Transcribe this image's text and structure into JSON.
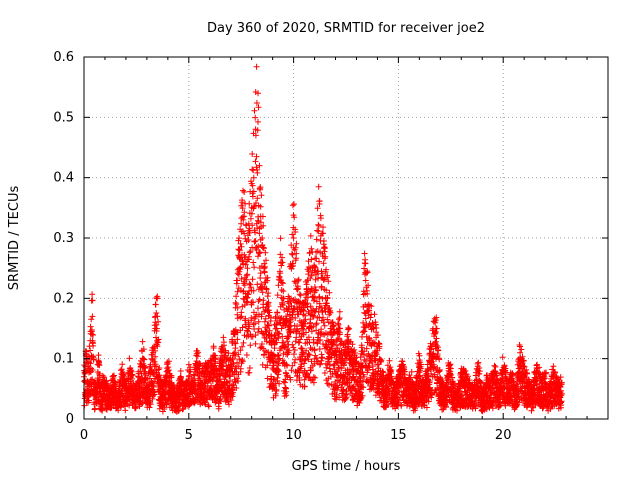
{
  "chart_data": {
    "type": "scatter",
    "title": "Day 360 of 2020, SRMTID for receiver joe2",
    "xlabel": "GPS time / hours",
    "ylabel": "SRMTID / TECUs",
    "xlim": [
      0,
      25
    ],
    "ylim": [
      0,
      0.6
    ],
    "xticks": [
      0,
      5,
      10,
      15,
      20
    ],
    "xtick_labels": [
      "0",
      "5",
      "10",
      "15",
      "20"
    ],
    "yticks": [
      0,
      0.1,
      0.2,
      0.3,
      0.4,
      0.5,
      0.6
    ],
    "ytick_labels": [
      "0",
      "0.1",
      "0.2",
      "0.3",
      "0.4",
      "0.5",
      "0.6"
    ],
    "grid": true,
    "marker": "plus",
    "color": "#ff0000",
    "series": [
      {
        "name": "SRMTID",
        "x": [
          0.0,
          0.1,
          0.2,
          0.3,
          0.4,
          0.5,
          0.6,
          0.7,
          0.8,
          0.9,
          1.0,
          1.2,
          1.4,
          1.6,
          1.8,
          2.0,
          2.2,
          2.4,
          2.6,
          2.8,
          3.0,
          3.2,
          3.3,
          3.4,
          3.5,
          3.6,
          3.8,
          4.0,
          4.2,
          4.4,
          4.6,
          4.8,
          5.0,
          5.2,
          5.4,
          5.6,
          5.8,
          6.0,
          6.2,
          6.4,
          6.6,
          6.8,
          7.0,
          7.2,
          7.4,
          7.6,
          7.8,
          8.0,
          8.1,
          8.2,
          8.3,
          8.4,
          8.5,
          8.6,
          8.8,
          9.0,
          9.2,
          9.4,
          9.6,
          9.8,
          10.0,
          10.2,
          10.4,
          10.6,
          10.8,
          11.0,
          11.2,
          11.4,
          11.6,
          11.8,
          12.0,
          12.2,
          12.4,
          12.6,
          12.8,
          13.0,
          13.2,
          13.4,
          13.6,
          13.8,
          14.0,
          14.2,
          14.4,
          14.6,
          14.8,
          15.0,
          15.2,
          15.4,
          15.6,
          15.8,
          16.0,
          16.2,
          16.4,
          16.6,
          16.8,
          17.0,
          17.2,
          17.4,
          17.6,
          17.8,
          18.0,
          18.2,
          18.4,
          18.6,
          18.8,
          19.0,
          19.2,
          19.4,
          19.6,
          19.8,
          20.0,
          20.2,
          20.4,
          20.6,
          20.8,
          21.0,
          21.2,
          21.4,
          21.6,
          21.8,
          22.0,
          22.2,
          22.4,
          22.6,
          22.8
        ],
        "y": [
          0.07,
          0.1,
          0.06,
          0.13,
          0.17,
          0.05,
          0.04,
          0.09,
          0.03,
          0.06,
          0.05,
          0.04,
          0.06,
          0.03,
          0.07,
          0.05,
          0.08,
          0.04,
          0.06,
          0.1,
          0.05,
          0.08,
          0.11,
          0.15,
          0.17,
          0.06,
          0.04,
          0.08,
          0.05,
          0.03,
          0.06,
          0.04,
          0.07,
          0.05,
          0.09,
          0.06,
          0.08,
          0.07,
          0.1,
          0.05,
          0.12,
          0.08,
          0.09,
          0.14,
          0.27,
          0.33,
          0.25,
          0.35,
          0.4,
          0.47,
          0.54,
          0.38,
          0.3,
          0.25,
          0.18,
          0.1,
          0.15,
          0.26,
          0.12,
          0.2,
          0.3,
          0.22,
          0.15,
          0.19,
          0.25,
          0.21,
          0.32,
          0.27,
          0.2,
          0.15,
          0.11,
          0.14,
          0.09,
          0.12,
          0.1,
          0.08,
          0.07,
          0.24,
          0.18,
          0.15,
          0.12,
          0.07,
          0.05,
          0.08,
          0.04,
          0.06,
          0.08,
          0.05,
          0.06,
          0.04,
          0.09,
          0.05,
          0.07,
          0.12,
          0.15,
          0.06,
          0.04,
          0.08,
          0.05,
          0.03,
          0.07,
          0.06,
          0.05,
          0.04,
          0.08,
          0.03,
          0.06,
          0.05,
          0.07,
          0.04,
          0.08,
          0.05,
          0.06,
          0.04,
          0.1,
          0.07,
          0.05,
          0.04,
          0.08,
          0.05,
          0.06,
          0.04,
          0.07,
          0.05,
          0.06
        ]
      }
    ]
  }
}
